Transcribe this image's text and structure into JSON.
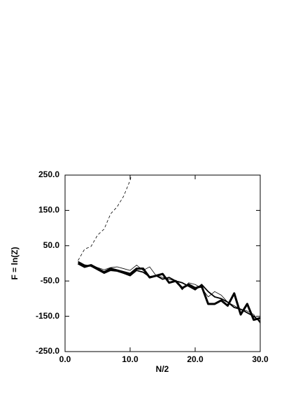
{
  "chart_data": {
    "type": "line",
    "x_label": "N/2",
    "y_label": "F = ln(Z)",
    "xlim": [
      0,
      30
    ],
    "ylim": [
      -250,
      250
    ],
    "xticks": [
      {
        "value": 0,
        "label": "0.0"
      },
      {
        "value": 10,
        "label": "10.0"
      },
      {
        "value": 20,
        "label": "20.0"
      },
      {
        "value": 30,
        "label": "30.0"
      }
    ],
    "yticks": [
      {
        "value": 250,
        "label": "250.0"
      },
      {
        "value": 150,
        "label": "150.0"
      },
      {
        "value": 50,
        "label": "50.0"
      },
      {
        "value": -50,
        "label": "-50.0"
      },
      {
        "value": -150,
        "label": "-150.0"
      },
      {
        "value": -250,
        "label": "-250.0"
      }
    ],
    "series": [
      {
        "color": "#000000",
        "line_width": 0.8,
        "dash": true,
        "x": [
          2,
          3,
          4,
          5,
          6,
          7,
          8,
          9,
          10,
          10.2
        ],
        "values": [
          8,
          40,
          48,
          80,
          97,
          140,
          160,
          190,
          235,
          250
        ]
      },
      {
        "color": "#000000",
        "line_width": 0.8,
        "x": [
          2,
          3,
          4,
          5,
          6,
          7,
          8,
          9,
          10,
          11,
          12,
          13,
          14,
          15,
          16,
          17,
          18,
          19,
          20,
          21,
          22,
          23,
          24,
          25,
          26,
          27,
          28,
          29,
          30
        ],
        "values": [
          3,
          -8,
          -5,
          -12,
          -18,
          -12,
          -10,
          -15,
          -20,
          -5,
          -20,
          -10,
          -35,
          -40,
          -45,
          -50,
          -75,
          -55,
          -60,
          -70,
          -95,
          -80,
          -90,
          -110,
          -120,
          -130,
          -135,
          -145,
          -170
        ]
      },
      {
        "color": "#000000",
        "line_width": 1.8,
        "x": [
          2,
          3,
          4,
          5,
          6,
          7,
          8,
          9,
          10,
          11,
          12,
          13,
          14,
          15,
          16,
          17,
          18,
          19,
          20,
          21,
          22,
          23,
          24,
          25,
          26,
          27,
          28,
          29,
          30
        ],
        "values": [
          5,
          -5,
          -8,
          -18,
          -28,
          -20,
          -22,
          -28,
          -35,
          -20,
          -25,
          -38,
          -35,
          -45,
          -40,
          -50,
          -55,
          -65,
          -75,
          -60,
          -80,
          -95,
          -100,
          -110,
          -125,
          -130,
          -140,
          -150,
          -165
        ]
      },
      {
        "color": "#000000",
        "line_width": 3,
        "x": [
          2,
          3,
          4,
          5,
          6,
          7,
          8,
          9,
          10,
          11,
          12,
          13,
          14,
          15,
          16,
          17,
          18,
          19,
          20,
          21,
          22,
          23,
          24,
          25,
          26,
          27,
          28,
          29,
          30
        ],
        "values": [
          0,
          -10,
          -5,
          -15,
          -25,
          -15,
          -20,
          -25,
          -30,
          -15,
          -15,
          -40,
          -35,
          -30,
          -55,
          -50,
          -70,
          -60,
          -70,
          -65,
          -115,
          -115,
          -105,
          -120,
          -85,
          -145,
          -115,
          -160,
          -155
        ]
      }
    ]
  }
}
